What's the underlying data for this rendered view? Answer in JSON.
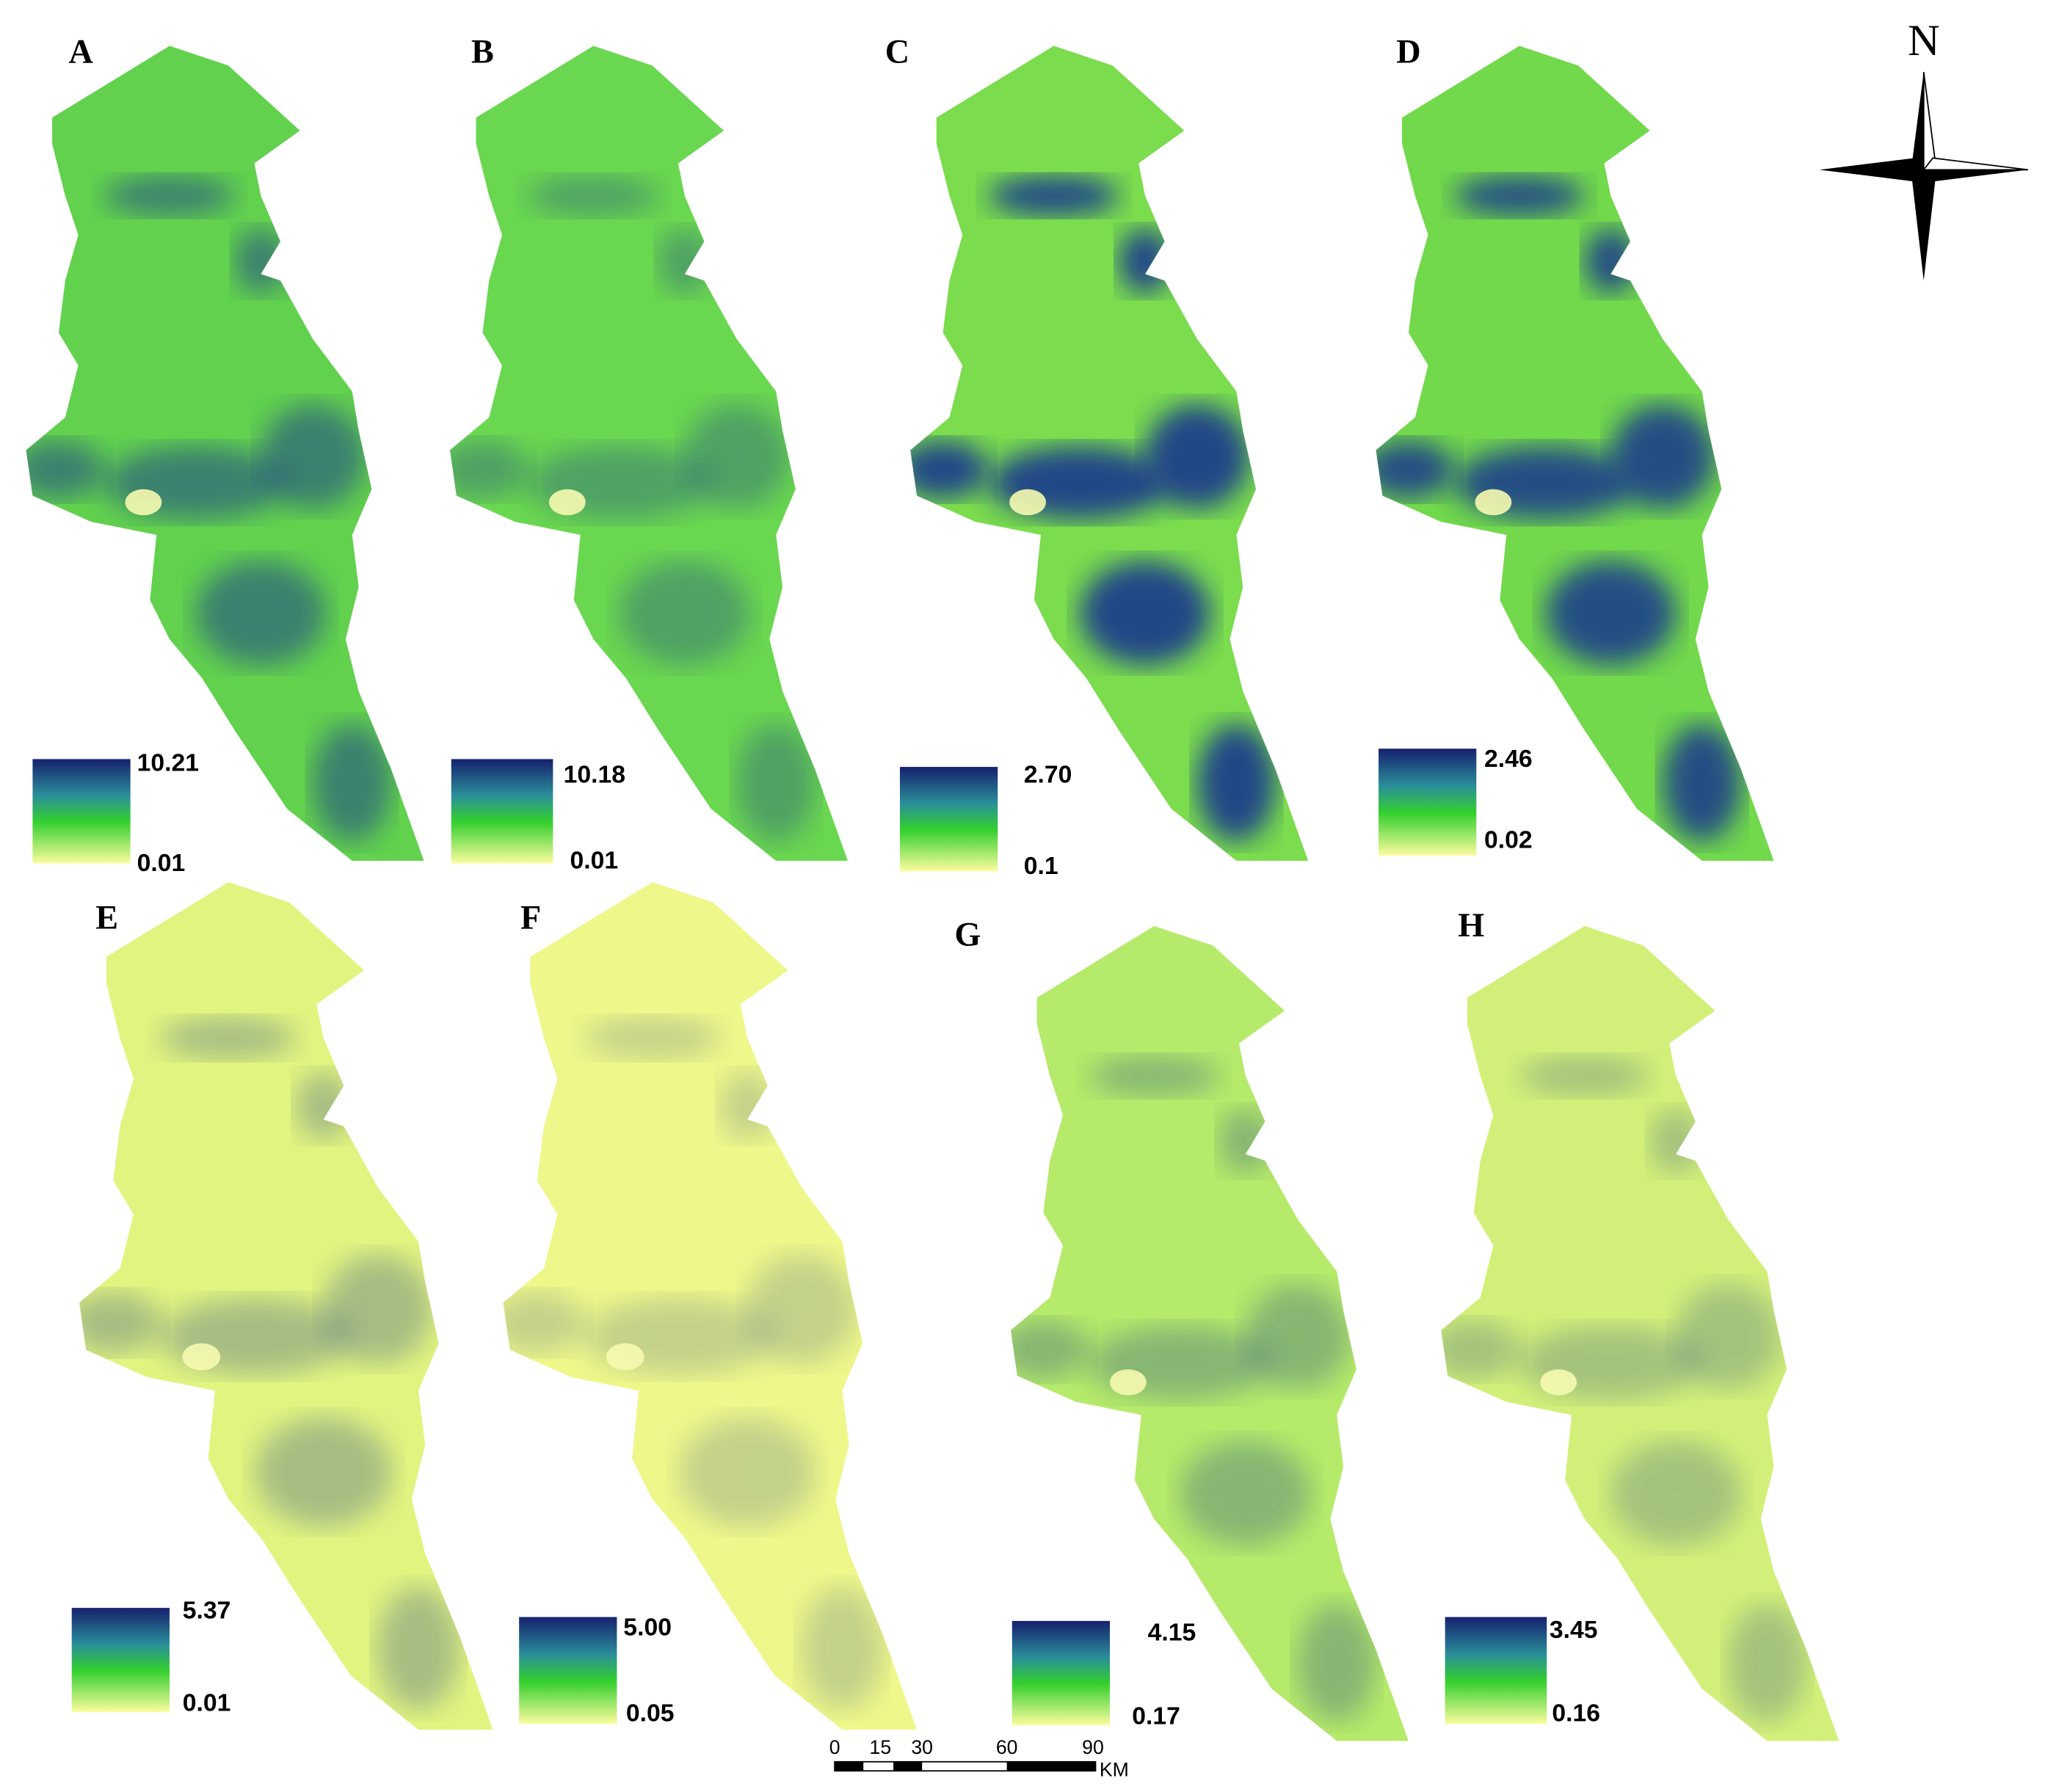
{
  "panels": [
    {
      "label": "A",
      "legend_max": "10.21",
      "legend_min": "0.01"
    },
    {
      "label": "B",
      "legend_max": "10.18",
      "legend_min": "0.01"
    },
    {
      "label": "C",
      "legend_max": "2.70",
      "legend_min": "0.1"
    },
    {
      "label": "D",
      "legend_max": "2.46",
      "legend_min": "0.02"
    },
    {
      "label": "E",
      "legend_max": "5.37",
      "legend_min": "0.01"
    },
    {
      "label": "F",
      "legend_max": "5.00",
      "legend_min": "0.05"
    },
    {
      "label": "G",
      "legend_max": "4.15",
      "legend_min": "0.17"
    },
    {
      "label": "H",
      "legend_max": "3.45",
      "legend_min": "0.16"
    }
  ],
  "scale_bar": {
    "ticks": [
      "0",
      "15",
      "30",
      "60",
      "90"
    ],
    "unit": "KM"
  },
  "north_label": "N"
}
